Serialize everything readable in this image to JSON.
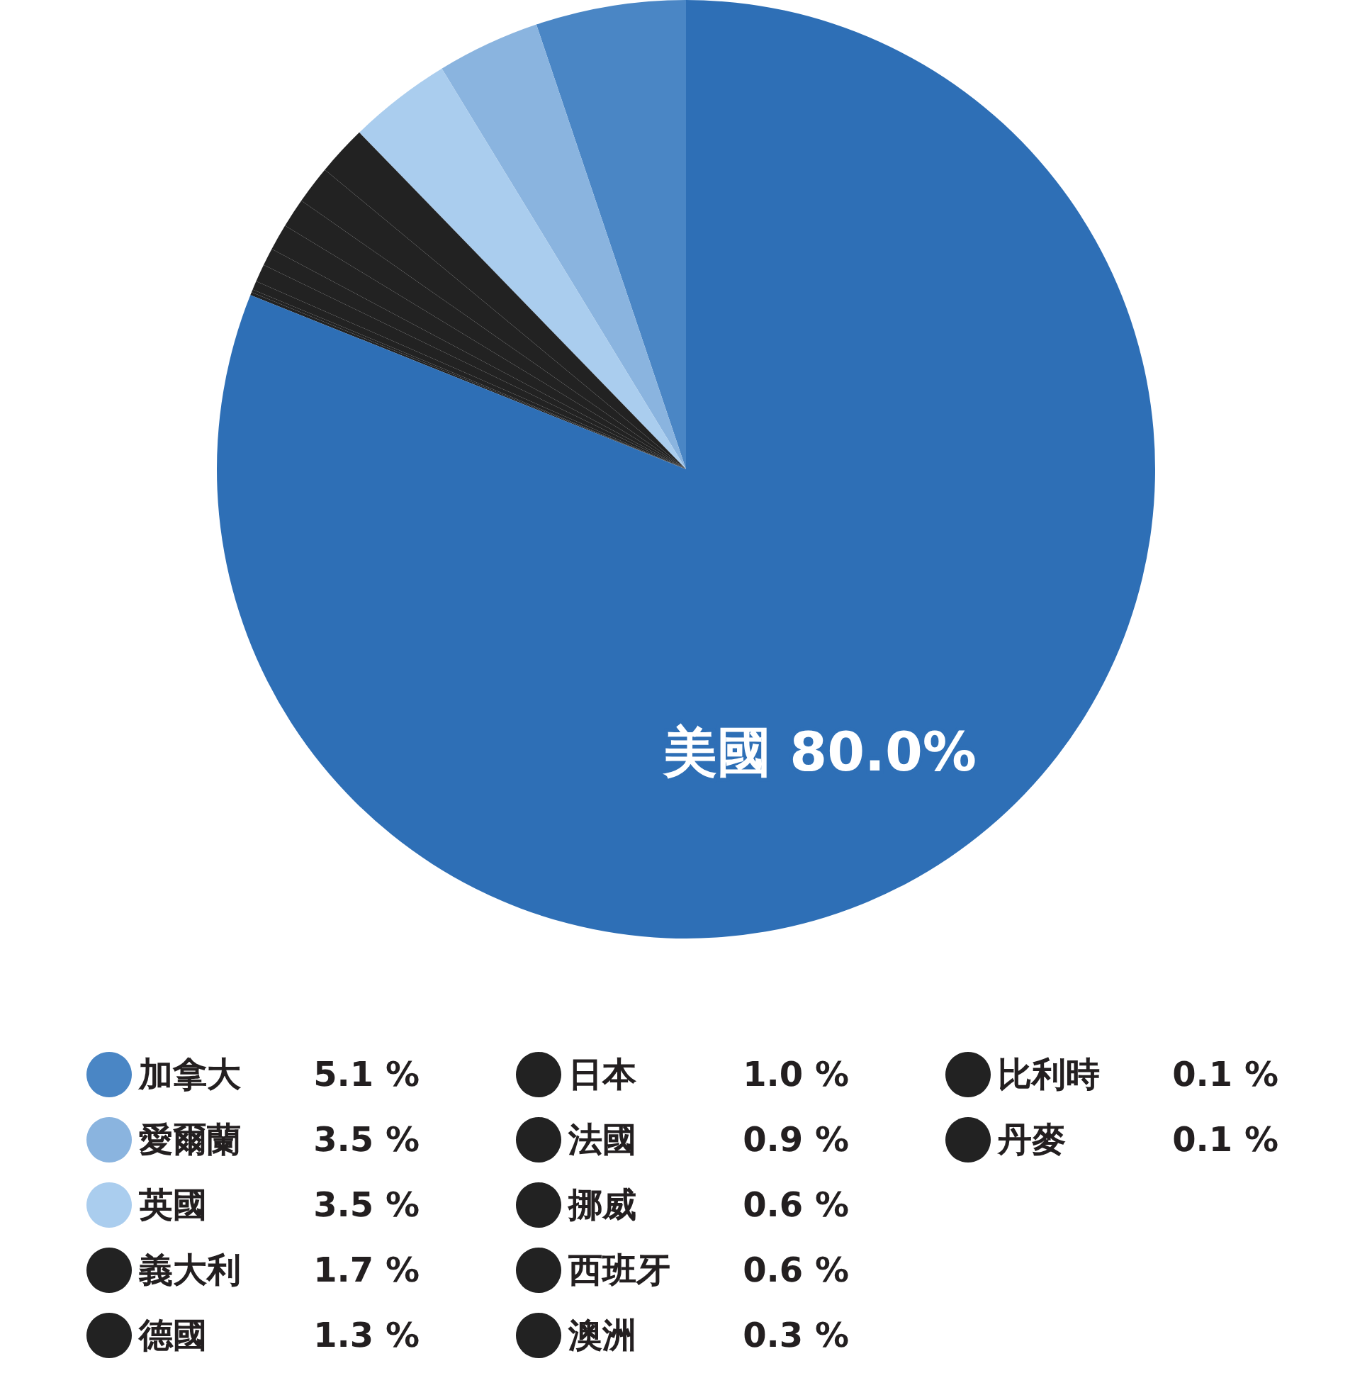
{
  "chart_data": {
    "type": "pie",
    "categories": [
      "加拿大",
      "愛爾蘭",
      "英國",
      "義大利",
      "德國",
      "日本",
      "法國",
      "挪威",
      "西班牙",
      "澳洲",
      "比利時",
      "丹麥",
      "美國"
    ],
    "values": [
      5.1,
      3.5,
      3.5,
      1.7,
      1.3,
      1.0,
      0.9,
      0.6,
      0.6,
      0.3,
      0.1,
      0.1,
      80.0
    ],
    "colors": [
      "#4a86c5",
      "#8ab4df",
      "#aacdee",
      "#222222",
      "#222222",
      "#222222",
      "#222222",
      "#222222",
      "#222222",
      "#222222",
      "#222222",
      "#222222",
      "#2e6fb6"
    ],
    "value_labels": [
      "5.1 %",
      "3.5 %",
      "3.5 %",
      "1.7 %",
      "1.3 %",
      "1.0 %",
      "0.9 %",
      "0.6 %",
      "0.6 %",
      "0.3 %",
      "0.1 %",
      "0.1 %",
      "80.0%"
    ],
    "legend": "bottom"
  }
}
